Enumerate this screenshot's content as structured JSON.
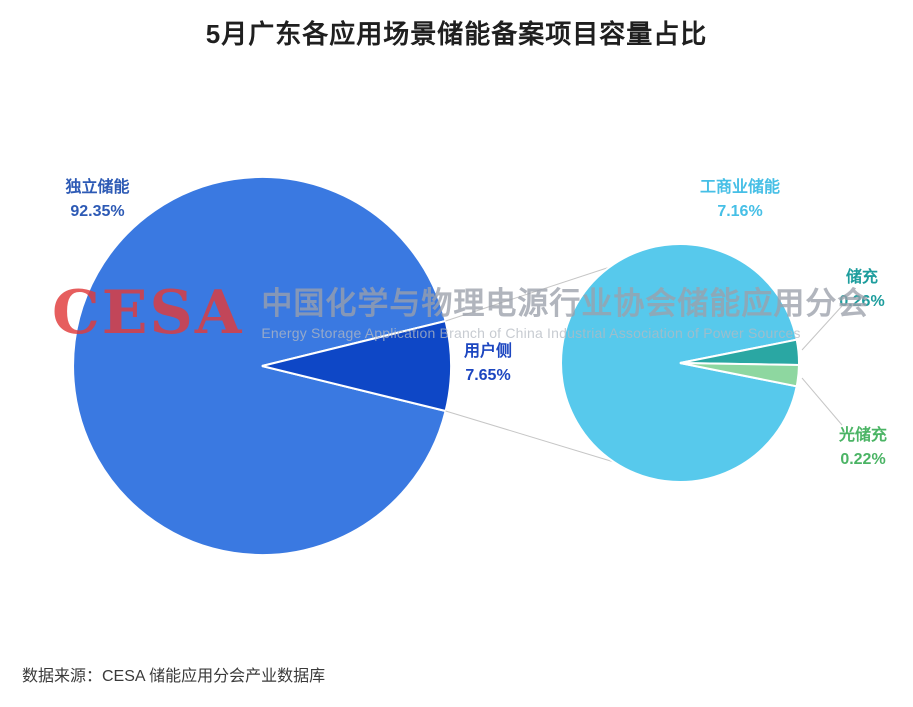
{
  "title": "5月广东各应用场景储能备案项目容量占比",
  "watermark": {
    "logo": "CESA",
    "cn": "中国化学与物理电源行业协会储能应用分会",
    "en": "Energy Storage Application Branch of China Industrial Association of Power Sources"
  },
  "source": "数据来源：CESA 储能应用分会产业数据库",
  "chart_data": {
    "type": "pie",
    "variant": "pie-of-pie",
    "title": "5月广东各应用场景储能备案项目容量占比",
    "legend": "none",
    "connector_color": "#c6c6c6",
    "main_pie": {
      "slices": [
        {
          "label": "独立储能",
          "value": 92.35,
          "pct": "92.35%",
          "color": "#3a79e1",
          "label_color": "#2d5ab5"
        },
        {
          "label": "用户侧",
          "value": 7.65,
          "pct": "7.65%",
          "color": "#0e47c6",
          "label_color": "#1c46c0"
        }
      ]
    },
    "secondary_pie": {
      "parent": "用户侧",
      "slices": [
        {
          "label": "工商业储能",
          "value": 7.16,
          "pct": "7.16%",
          "color": "#57c9ec",
          "label_color": "#46bfe6"
        },
        {
          "label": "储充",
          "value": 0.26,
          "pct": "0.26%",
          "color": "#2aa7a3",
          "label_color": "#1d9d9d"
        },
        {
          "label": "光储充",
          "value": 0.22,
          "pct": "0.22%",
          "color": "#8ed7a0",
          "label_color": "#4bb465"
        }
      ]
    }
  }
}
